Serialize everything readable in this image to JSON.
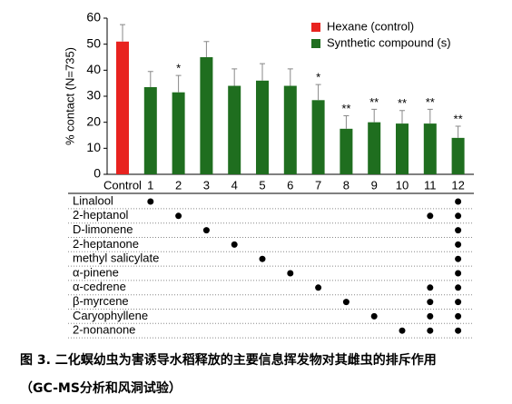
{
  "chart_data": {
    "type": "bar",
    "y_label": "% contact (N=735)",
    "categories": [
      "Control",
      "1",
      "2",
      "3",
      "4",
      "5",
      "6",
      "7",
      "8",
      "9",
      "10",
      "11",
      "12"
    ],
    "series": [
      {
        "name": "Hexane (control)",
        "color": "#e8231f",
        "values": [
          51,
          null,
          null,
          null,
          null,
          null,
          null,
          null,
          null,
          null,
          null,
          null,
          null
        ],
        "errors": [
          6.5,
          null,
          null,
          null,
          null,
          null,
          null,
          null,
          null,
          null,
          null,
          null,
          null
        ]
      },
      {
        "name": "Synthetic compound (s)",
        "color": "#1f6e1f",
        "values": [
          null,
          33.5,
          31.5,
          45,
          34,
          36,
          34,
          28.5,
          17.5,
          20,
          19.5,
          19.5,
          14
        ],
        "errors": [
          null,
          6,
          6.5,
          6,
          6.5,
          6.5,
          6.5,
          6,
          5,
          5,
          5,
          5.5,
          4.5
        ]
      }
    ],
    "annotations": [
      null,
      null,
      "*",
      null,
      null,
      null,
      null,
      "*",
      "**",
      "**",
      "**",
      "**",
      "**"
    ],
    "ylim": [
      0,
      60
    ],
    "yticks": [
      0,
      10,
      20,
      30,
      40,
      50,
      60
    ],
    "composition": [
      {
        "name": "Linalool",
        "columns": [
          1,
          12
        ]
      },
      {
        "name": "2-heptanol",
        "columns": [
          2,
          11,
          12
        ]
      },
      {
        "name": "D-limonene",
        "columns": [
          3,
          12
        ]
      },
      {
        "name": "2-heptanone",
        "columns": [
          4,
          12
        ]
      },
      {
        "name": "methyl salicylate",
        "columns": [
          5,
          12
        ]
      },
      {
        "name": "α-pinene",
        "columns": [
          6,
          12
        ]
      },
      {
        "name": "α-cedrene",
        "columns": [
          7,
          11,
          12
        ]
      },
      {
        "name": "β-myrcene",
        "columns": [
          8,
          11,
          12
        ]
      },
      {
        "name": "Caryophyllene",
        "columns": [
          9,
          11,
          12
        ]
      },
      {
        "name": "2-nonanone",
        "columns": [
          10,
          11,
          12
        ]
      }
    ]
  },
  "caption": {
    "line1": "图 3. 二化螟幼虫为害诱导水稻释放的主要信息挥发物对其雌虫的排斥作用",
    "line2": "（GC-MS分析和风洞试验）"
  }
}
